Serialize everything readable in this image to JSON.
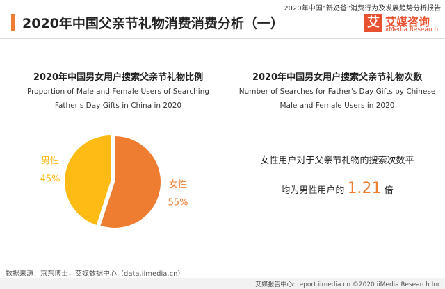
{
  "header": {
    "report": "2020年中国“新奶爸”消费行为及发展趋势分析报告",
    "title": "2020年中国父亲节礼物消费消费分析（一）",
    "logo": "艾媒咨询",
    "logo_en": "iiMedia Research"
  },
  "chart_data": {
    "type": "pie",
    "title": "2020年中国男女用户搜索父亲节礼物比例",
    "subtitle": "Proportion of Male and Female Users of Searching Father's Day Gifts in China in 2020",
    "categories": [
      "女性",
      "男性"
    ],
    "values": [
      55,
      45
    ],
    "value_labels": [
      "55%",
      "45%"
    ],
    "colors": [
      "#ee7d31",
      "#fdbb13"
    ]
  },
  "right_panel": {
    "title": "2020年中国男女用户搜索父亲节礼物次数",
    "subtitle": "Number of Searches for Father's Day Gifts by Chinese Male and Female Users in 2020",
    "line1": "女性用户对于父亲节礼物的搜索次数平",
    "line2": "均为男性用户的",
    "ratio": "1.21",
    "unit": "倍"
  },
  "footer": {
    "source": "数据来源：京东博士，艾媒数据中心（data.iimedia.cn）",
    "bar": "艾媒报告中心: report.iimedia.cn ©2020 iiMedia Research Inc"
  }
}
